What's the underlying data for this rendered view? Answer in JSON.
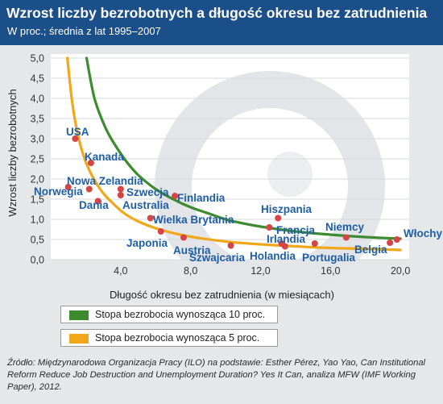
{
  "header": {
    "title": "Wzrost liczby bezrobotnych a długość okresu bez zatrudnienia",
    "subtitle": "W proc.; średnia z lat 1995–2007"
  },
  "legend": [
    {
      "label": "Stopa bezrobocia wynosząca 10 proc.",
      "color": "#3d8b2f"
    },
    {
      "label": "Stopa bezrobocia wynosząca 5 proc.",
      "color": "#f0a81a"
    }
  ],
  "source": "Źródło: Międzynarodowa Organizacja Pracy (ILO) na podstawie: Esther Pérez, Yao Yao, Can Institutional Reform Reduce Job Destruction and Unemployment Duration? Yes It Can, analiza MFW (IMF Working Paper), 2012.",
  "colors": {
    "header_bg": "#1b4f8a",
    "plot_bg": "#ffffff",
    "point": "#d64545",
    "country_label": "#1f5fa6",
    "curve_10": "#3d8b2f",
    "curve_5": "#f0a81a"
  },
  "chart_data": {
    "type": "scatter",
    "title": "Wzrost liczby bezrobotnych a długość okresu bez zatrudnienia",
    "subtitle": "W proc.; średnia z lat 1995–2007",
    "xlabel": "Długość okresu bez zatrudnienia (w miesiącach)",
    "ylabel": "Wzrost liczby bezrobotnych",
    "xlim": [
      0,
      20.5
    ],
    "ylim": [
      0,
      5.1
    ],
    "x_ticks": [
      {
        "value": 4,
        "label": "4,0"
      },
      {
        "value": 8,
        "label": "8,0"
      },
      {
        "value": 12,
        "label": "12,0"
      },
      {
        "value": 16,
        "label": "16,0"
      },
      {
        "value": 20,
        "label": "20,0"
      }
    ],
    "y_ticks": [
      {
        "value": 0,
        "label": "0,0"
      },
      {
        "value": 0.5,
        "label": "0,5"
      },
      {
        "value": 1,
        "label": "1,0"
      },
      {
        "value": 1.5,
        "label": "1,5"
      },
      {
        "value": 2,
        "label": "2,0"
      },
      {
        "value": 2.5,
        "label": "2,5"
      },
      {
        "value": 3,
        "label": "3,0"
      },
      {
        "value": 3.5,
        "label": "3,5"
      },
      {
        "value": 4,
        "label": "4,0"
      },
      {
        "value": 4.5,
        "label": "4,5"
      },
      {
        "value": 5,
        "label": "5,0"
      }
    ],
    "grid": true,
    "points": [
      {
        "name": "USA",
        "x": 1.4,
        "y": 3.0
      },
      {
        "name": "Kanada",
        "x": 2.3,
        "y": 2.4
      },
      {
        "name": "Nowa Zelandia",
        "x": 4.0,
        "y": 1.75
      },
      {
        "name": "Norwegia",
        "x": 1.0,
        "y": 1.8
      },
      {
        "name": "Szwecja",
        "x": 4.0,
        "y": 1.6
      },
      {
        "name": "Dania",
        "x": 2.7,
        "y": 1.45
      },
      {
        "name": "Australia",
        "x": 2.2,
        "y": 1.75
      },
      {
        "name": "Finlandia",
        "x": 7.1,
        "y": 1.58
      },
      {
        "name": "Wielka Brytania",
        "x": 5.7,
        "y": 1.03
      },
      {
        "name": "Japonia",
        "x": 6.3,
        "y": 0.7
      },
      {
        "name": "Austria",
        "x": 7.6,
        "y": 0.55
      },
      {
        "name": "Szwajcaria",
        "x": 10.3,
        "y": 0.35
      },
      {
        "name": "Hiszpania",
        "x": 13.0,
        "y": 1.03
      },
      {
        "name": "Francja",
        "x": 12.5,
        "y": 0.8
      },
      {
        "name": "Irlandia",
        "x": 13.2,
        "y": 0.4
      },
      {
        "name": "Holandia",
        "x": 13.4,
        "y": 0.33
      },
      {
        "name": "Portugalia",
        "x": 15.1,
        "y": 0.4
      },
      {
        "name": "Niemcy",
        "x": 16.9,
        "y": 0.55
      },
      {
        "name": "Belgia",
        "x": 19.4,
        "y": 0.42
      },
      {
        "name": "Włochy",
        "x": 19.8,
        "y": 0.5
      }
    ],
    "series": [
      {
        "name": "Stopa bezrobocia wynosząca 10 proc.",
        "type": "line",
        "points": [
          [
            2.05,
            5.0
          ],
          [
            2.5,
            4.0
          ],
          [
            3.1,
            3.3
          ],
          [
            3.6,
            2.9
          ],
          [
            4.3,
            2.45
          ],
          [
            5.0,
            2.1
          ],
          [
            6.0,
            1.75
          ],
          [
            7.0,
            1.5
          ],
          [
            8.0,
            1.3
          ],
          [
            9.0,
            1.15
          ],
          [
            10.0,
            1.0
          ],
          [
            11.0,
            0.9
          ],
          [
            12.0,
            0.82
          ],
          [
            14.0,
            0.7
          ],
          [
            16.0,
            0.62
          ],
          [
            18.0,
            0.56
          ],
          [
            20.0,
            0.52
          ]
        ]
      },
      {
        "name": "Stopa bezrobocia wynosząca 5 proc.",
        "type": "line",
        "points": [
          [
            0.95,
            5.0
          ],
          [
            1.2,
            4.0
          ],
          [
            1.5,
            3.2
          ],
          [
            1.9,
            2.55
          ],
          [
            2.4,
            2.05
          ],
          [
            3.0,
            1.65
          ],
          [
            3.6,
            1.38
          ],
          [
            4.2,
            1.15
          ],
          [
            5.0,
            0.95
          ],
          [
            6.0,
            0.78
          ],
          [
            7.0,
            0.66
          ],
          [
            8.0,
            0.57
          ],
          [
            10.0,
            0.45
          ],
          [
            12.0,
            0.38
          ],
          [
            14.0,
            0.33
          ],
          [
            16.0,
            0.29
          ],
          [
            18.0,
            0.27
          ],
          [
            20.0,
            0.24
          ]
        ]
      }
    ]
  }
}
